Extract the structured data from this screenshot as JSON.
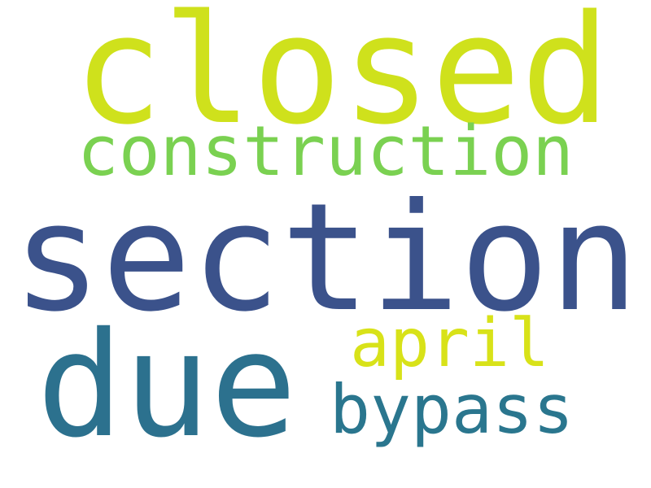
{
  "words": [
    {
      "text": "closed",
      "color": "#cfe11c"
    },
    {
      "text": "construction",
      "color": "#7ad151"
    },
    {
      "text": "section",
      "color": "#3b528b"
    },
    {
      "text": "april",
      "color": "#d8e219"
    },
    {
      "text": "due",
      "color": "#2c718e"
    },
    {
      "text": "bypass",
      "color": "#2a768e"
    }
  ]
}
